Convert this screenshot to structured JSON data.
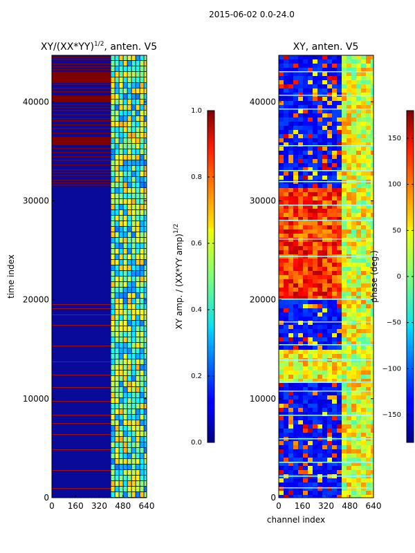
{
  "suptitle": "2015-06-02 0.0-24.0",
  "chart_data": [
    {
      "type": "heatmap",
      "title": "XY/(XX*YY)",
      "title_exponent": "1/2",
      "title_suffix": ", anten. V5",
      "xlabel": "",
      "ylabel": "time index",
      "xlim": [
        0,
        640
      ],
      "ylim": [
        0,
        44700
      ],
      "xticks": [
        0,
        160,
        320,
        480,
        640
      ],
      "yticks": [
        0,
        10000,
        20000,
        30000,
        40000
      ],
      "colorbar": {
        "label": "XY amp. / (XX*YY amp)",
        "label_exponent": "1/2",
        "range": [
          0.0,
          1.0
        ],
        "ticks": [
          "0.0",
          "0.2",
          "0.4",
          "0.6",
          "0.8",
          "1.0"
        ],
        "colormap": "jet"
      },
      "notes": "Mostly low amplitude (~0.05); bright band for channels ~400-640; saturated (1.0) rows concentrated above index ~31000"
    },
    {
      "type": "heatmap",
      "title": "XY, anten. V5",
      "xlabel": "channel index",
      "ylabel": "",
      "xlim": [
        0,
        640
      ],
      "ylim": [
        0,
        44700
      ],
      "xticks": [
        0,
        160,
        320,
        480,
        640
      ],
      "yticks": [
        0,
        10000,
        20000,
        30000,
        40000
      ],
      "colorbar": {
        "label": "phase (deg.)",
        "range": [
          -180,
          180
        ],
        "ticks": [
          "150",
          "100",
          "50",
          "0",
          "−50",
          "−100",
          "−150"
        ],
        "colormap": "jet"
      },
      "notes": "Phase values spanning full range; band near channels 400-640 mostly green/yellow"
    }
  ]
}
